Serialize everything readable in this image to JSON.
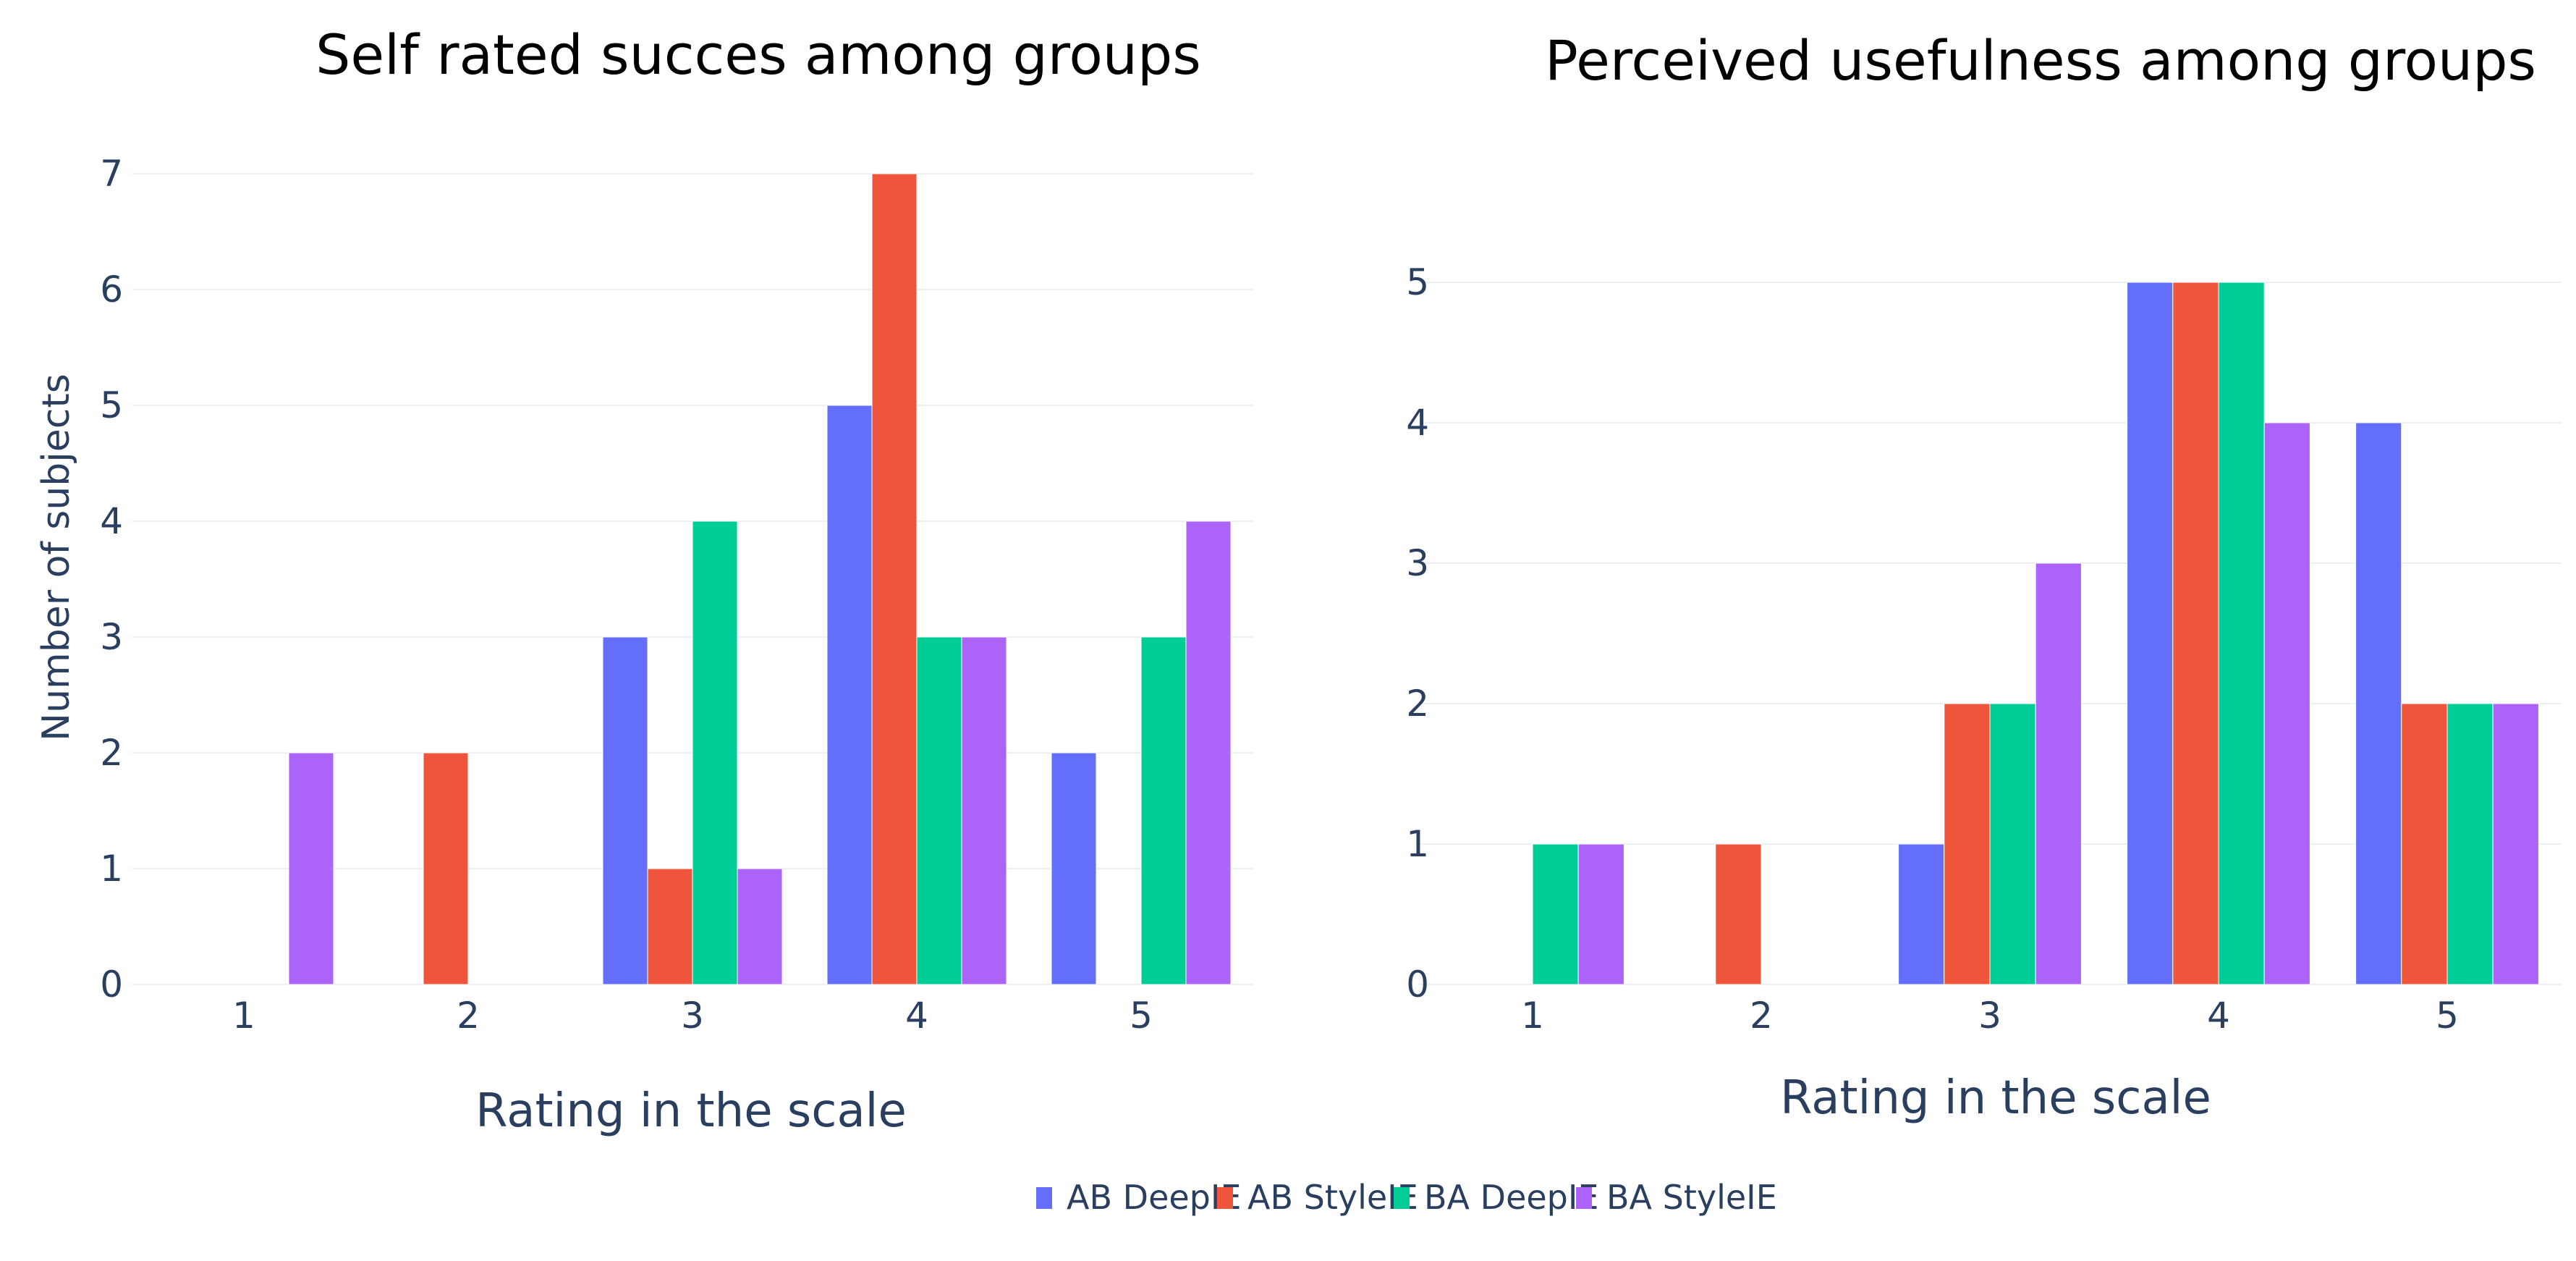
{
  "y_axis_title": "Number of subjects",
  "legend": {
    "placement": "bottom-center"
  },
  "colors": {
    "AB DeepIE": "#636efa",
    "AB StyleIE": "#ef553b",
    "BA DeepIE": "#00cc96",
    "BA StyleIE": "#ab63fa",
    "grid": "#ebf0f8",
    "tick_text": "#2a3f5f"
  },
  "chart_data": [
    {
      "type": "bar",
      "title": "Self rated succes among groups",
      "xlabel": "Rating in the scale",
      "ylabel": "Number of subjects",
      "categories": [
        "1",
        "2",
        "3",
        "4",
        "5"
      ],
      "ylim": [
        0,
        7
      ],
      "yticks": [
        0,
        1,
        2,
        3,
        4,
        5,
        6,
        7
      ],
      "series": [
        {
          "name": "AB DeepIE",
          "values": [
            0,
            0,
            3,
            5,
            2
          ]
        },
        {
          "name": "AB StyleIE",
          "values": [
            0,
            2,
            1,
            7,
            0
          ]
        },
        {
          "name": "BA DeepIE",
          "values": [
            0,
            0,
            4,
            3,
            3
          ]
        },
        {
          "name": "BA StyleIE",
          "values": [
            2,
            0,
            1,
            3,
            4
          ]
        }
      ]
    },
    {
      "type": "bar",
      "title": "Perceived usefulness among groups",
      "xlabel": "Rating in the scale",
      "ylabel": "",
      "categories": [
        "1",
        "2",
        "3",
        "4",
        "5"
      ],
      "ylim": [
        0,
        5.5
      ],
      "yticks": [
        0,
        1,
        2,
        3,
        4,
        5
      ],
      "series": [
        {
          "name": "AB DeepIE",
          "values": [
            0,
            0,
            1,
            5,
            4
          ]
        },
        {
          "name": "AB StyleIE",
          "values": [
            0,
            1,
            2,
            5,
            2
          ]
        },
        {
          "name": "BA DeepIE",
          "values": [
            1,
            0,
            2,
            5,
            2
          ]
        },
        {
          "name": "BA StyleIE",
          "values": [
            1,
            0,
            3,
            4,
            2
          ]
        }
      ]
    }
  ]
}
